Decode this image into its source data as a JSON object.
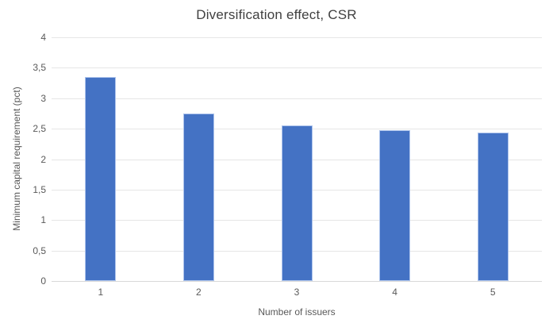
{
  "chart_data": {
    "type": "bar",
    "title": "Diversification effect, CSR",
    "xlabel": "Number of issuers",
    "ylabel": "Minimum capital requirement (pct)",
    "categories": [
      "1",
      "2",
      "3",
      "4",
      "5"
    ],
    "values": [
      3.35,
      2.75,
      2.56,
      2.48,
      2.44
    ],
    "ylim": [
      0,
      4
    ],
    "ytick_step": 0.5,
    "ytick_labels": [
      "0",
      "0,5",
      "1",
      "1,5",
      "2",
      "2,5",
      "3",
      "3,5",
      "4"
    ],
    "decimal_separator": ",",
    "grid": true,
    "legend": "none",
    "colors": {
      "bar_fill": "#4472C4",
      "bar_border": "#AEC4EC",
      "gridline": "#E6E6E6",
      "axis_line": "#D9D9D9",
      "tick_text": "#595959",
      "title_text": "#404040"
    }
  }
}
